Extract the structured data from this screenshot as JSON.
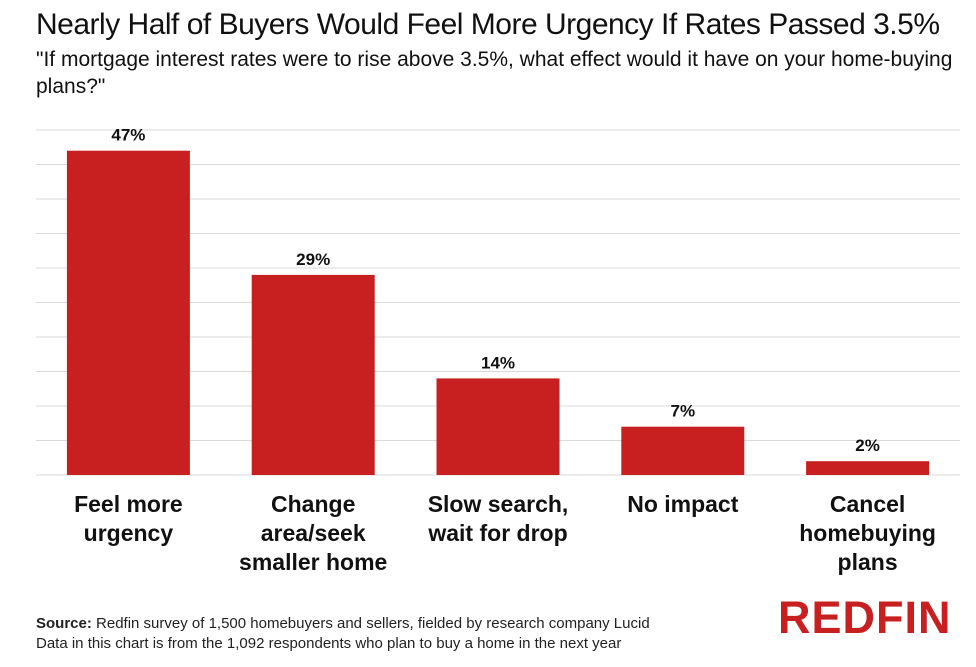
{
  "title": "Nearly Half of Buyers Would Feel More Urgency If Rates Passed 3.5%",
  "subtitle": "\"If mortgage interest rates were to rise above 3.5%, what effect would it have on your home-buying plans?\"",
  "source_label": "Source:",
  "source_text": " Redfin survey of 1,500 homebuyers and sellers, fielded by research company Lucid",
  "note": "Data in this chart is from the 1,092 respondents who plan to buy a home in the next year",
  "logo_text": "REDFIN",
  "colors": {
    "bar": "#c82021",
    "grid": "#d9d9d9",
    "text": "#111111"
  },
  "chart_data": {
    "type": "bar",
    "title": "Nearly Half of Buyers Would Feel More Urgency If Rates Passed 3.5%",
    "categories": [
      [
        "Feel more",
        "urgency"
      ],
      [
        "Change",
        "area/seek",
        "smaller home"
      ],
      [
        "Slow search,",
        "wait for drop"
      ],
      [
        "No impact"
      ],
      [
        "Cancel",
        "homebuying",
        "plans"
      ]
    ],
    "values": [
      47,
      29,
      14,
      7,
      2
    ],
    "value_labels": [
      "47%",
      "29%",
      "14%",
      "7%",
      "2%"
    ],
    "xlabel": "",
    "ylabel": "",
    "ylim": [
      0,
      50
    ],
    "grid": true,
    "legend": "none"
  }
}
